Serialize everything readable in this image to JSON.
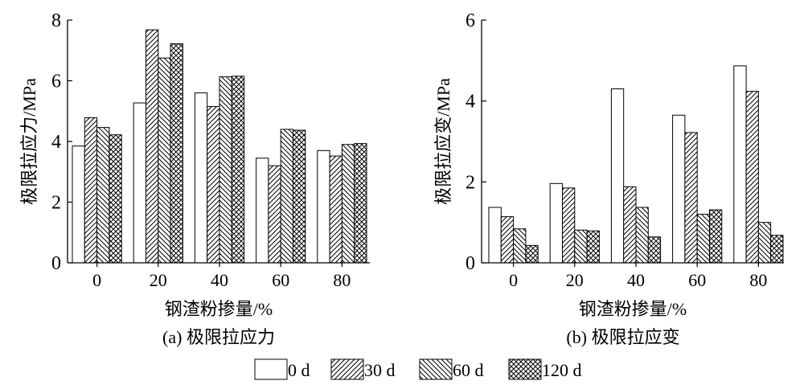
{
  "chart_data": [
    {
      "type": "bar",
      "caption": "(a) 极限拉应力",
      "xlabel": "钢渣粉掺量/%",
      "ylabel": "极限拉应力/MPa",
      "categories": [
        "0",
        "20",
        "40",
        "60",
        "80"
      ],
      "ylim": [
        0,
        8
      ],
      "yticks": [
        "0",
        "2",
        "4",
        "6",
        "8"
      ],
      "grid": false,
      "series": [
        {
          "name": "0 d",
          "values": [
            3.85,
            5.27,
            5.6,
            3.45,
            3.7
          ]
        },
        {
          "name": "30 d",
          "values": [
            4.78,
            7.68,
            5.15,
            3.2,
            3.52
          ]
        },
        {
          "name": "60 d",
          "values": [
            4.46,
            6.75,
            6.13,
            4.4,
            3.9
          ]
        },
        {
          "name": "120 d",
          "values": [
            4.22,
            7.22,
            6.15,
            4.37,
            3.93
          ]
        }
      ]
    },
    {
      "type": "bar",
      "caption": "(b) 极限拉应变",
      "xlabel": "钢渣粉掺量/%",
      "ylabel": "极限拉应变/MPa",
      "categories": [
        "0",
        "20",
        "40",
        "60",
        "80"
      ],
      "ylim": [
        0,
        6
      ],
      "yticks": [
        "0",
        "2",
        "4",
        "6"
      ],
      "grid": false,
      "series": [
        {
          "name": "0 d",
          "values": [
            1.37,
            1.96,
            4.3,
            3.65,
            4.87
          ]
        },
        {
          "name": "30 d",
          "values": [
            1.14,
            1.85,
            1.88,
            3.22,
            4.24
          ]
        },
        {
          "name": "60 d",
          "values": [
            0.84,
            0.81,
            1.37,
            1.2,
            1.0
          ]
        },
        {
          "name": "120 d",
          "values": [
            0.43,
            0.79,
            0.64,
            1.31,
            0.68
          ]
        }
      ]
    }
  ],
  "legend": {
    "placement": "bottom-center",
    "items": [
      {
        "label": "0 d",
        "pattern": "blank"
      },
      {
        "label": "30 d",
        "pattern": "forward-hatch"
      },
      {
        "label": "60 d",
        "pattern": "backward-hatch"
      },
      {
        "label": "120 d",
        "pattern": "cross-hatch"
      }
    ]
  }
}
